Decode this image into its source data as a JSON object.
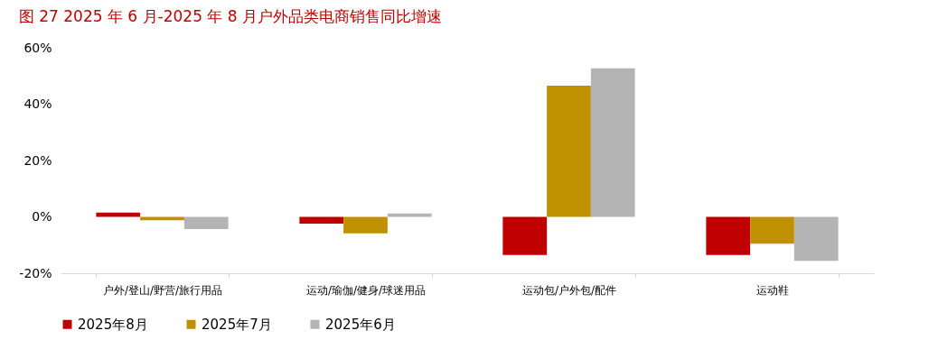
{
  "chart_data": {
    "type": "bar",
    "title": "图 27 2025 年 6 月-2025 年 8 月户外品类电商销售同比增速",
    "categories": [
      "户外/登山/野营/旅行用品",
      "运动/瑜伽/健身/球迷用品",
      "运动包/户外包/配件",
      "运动鞋"
    ],
    "series": [
      {
        "name": "2025年8月",
        "color": "#c00000",
        "values": [
          1.5,
          -2.4,
          -13.5,
          -13.5
        ]
      },
      {
        "name": "2025年7月",
        "color": "#bf9000",
        "values": [
          -1.2,
          -5.8,
          46.6,
          -9.5
        ]
      },
      {
        "name": "2025年6月",
        "color": "#b4b4b4",
        "values": [
          -4.3,
          1.2,
          52.7,
          -15.6
        ]
      }
    ],
    "ylim": [
      -20,
      60
    ],
    "yticks": [
      {
        "value": -20,
        "label": "-20%"
      },
      {
        "value": 0,
        "label": "0%"
      },
      {
        "value": 20,
        "label": "20%"
      },
      {
        "value": 40,
        "label": "40%"
      },
      {
        "value": 60,
        "label": "60%"
      }
    ],
    "grid": false,
    "legend": "bottom"
  }
}
